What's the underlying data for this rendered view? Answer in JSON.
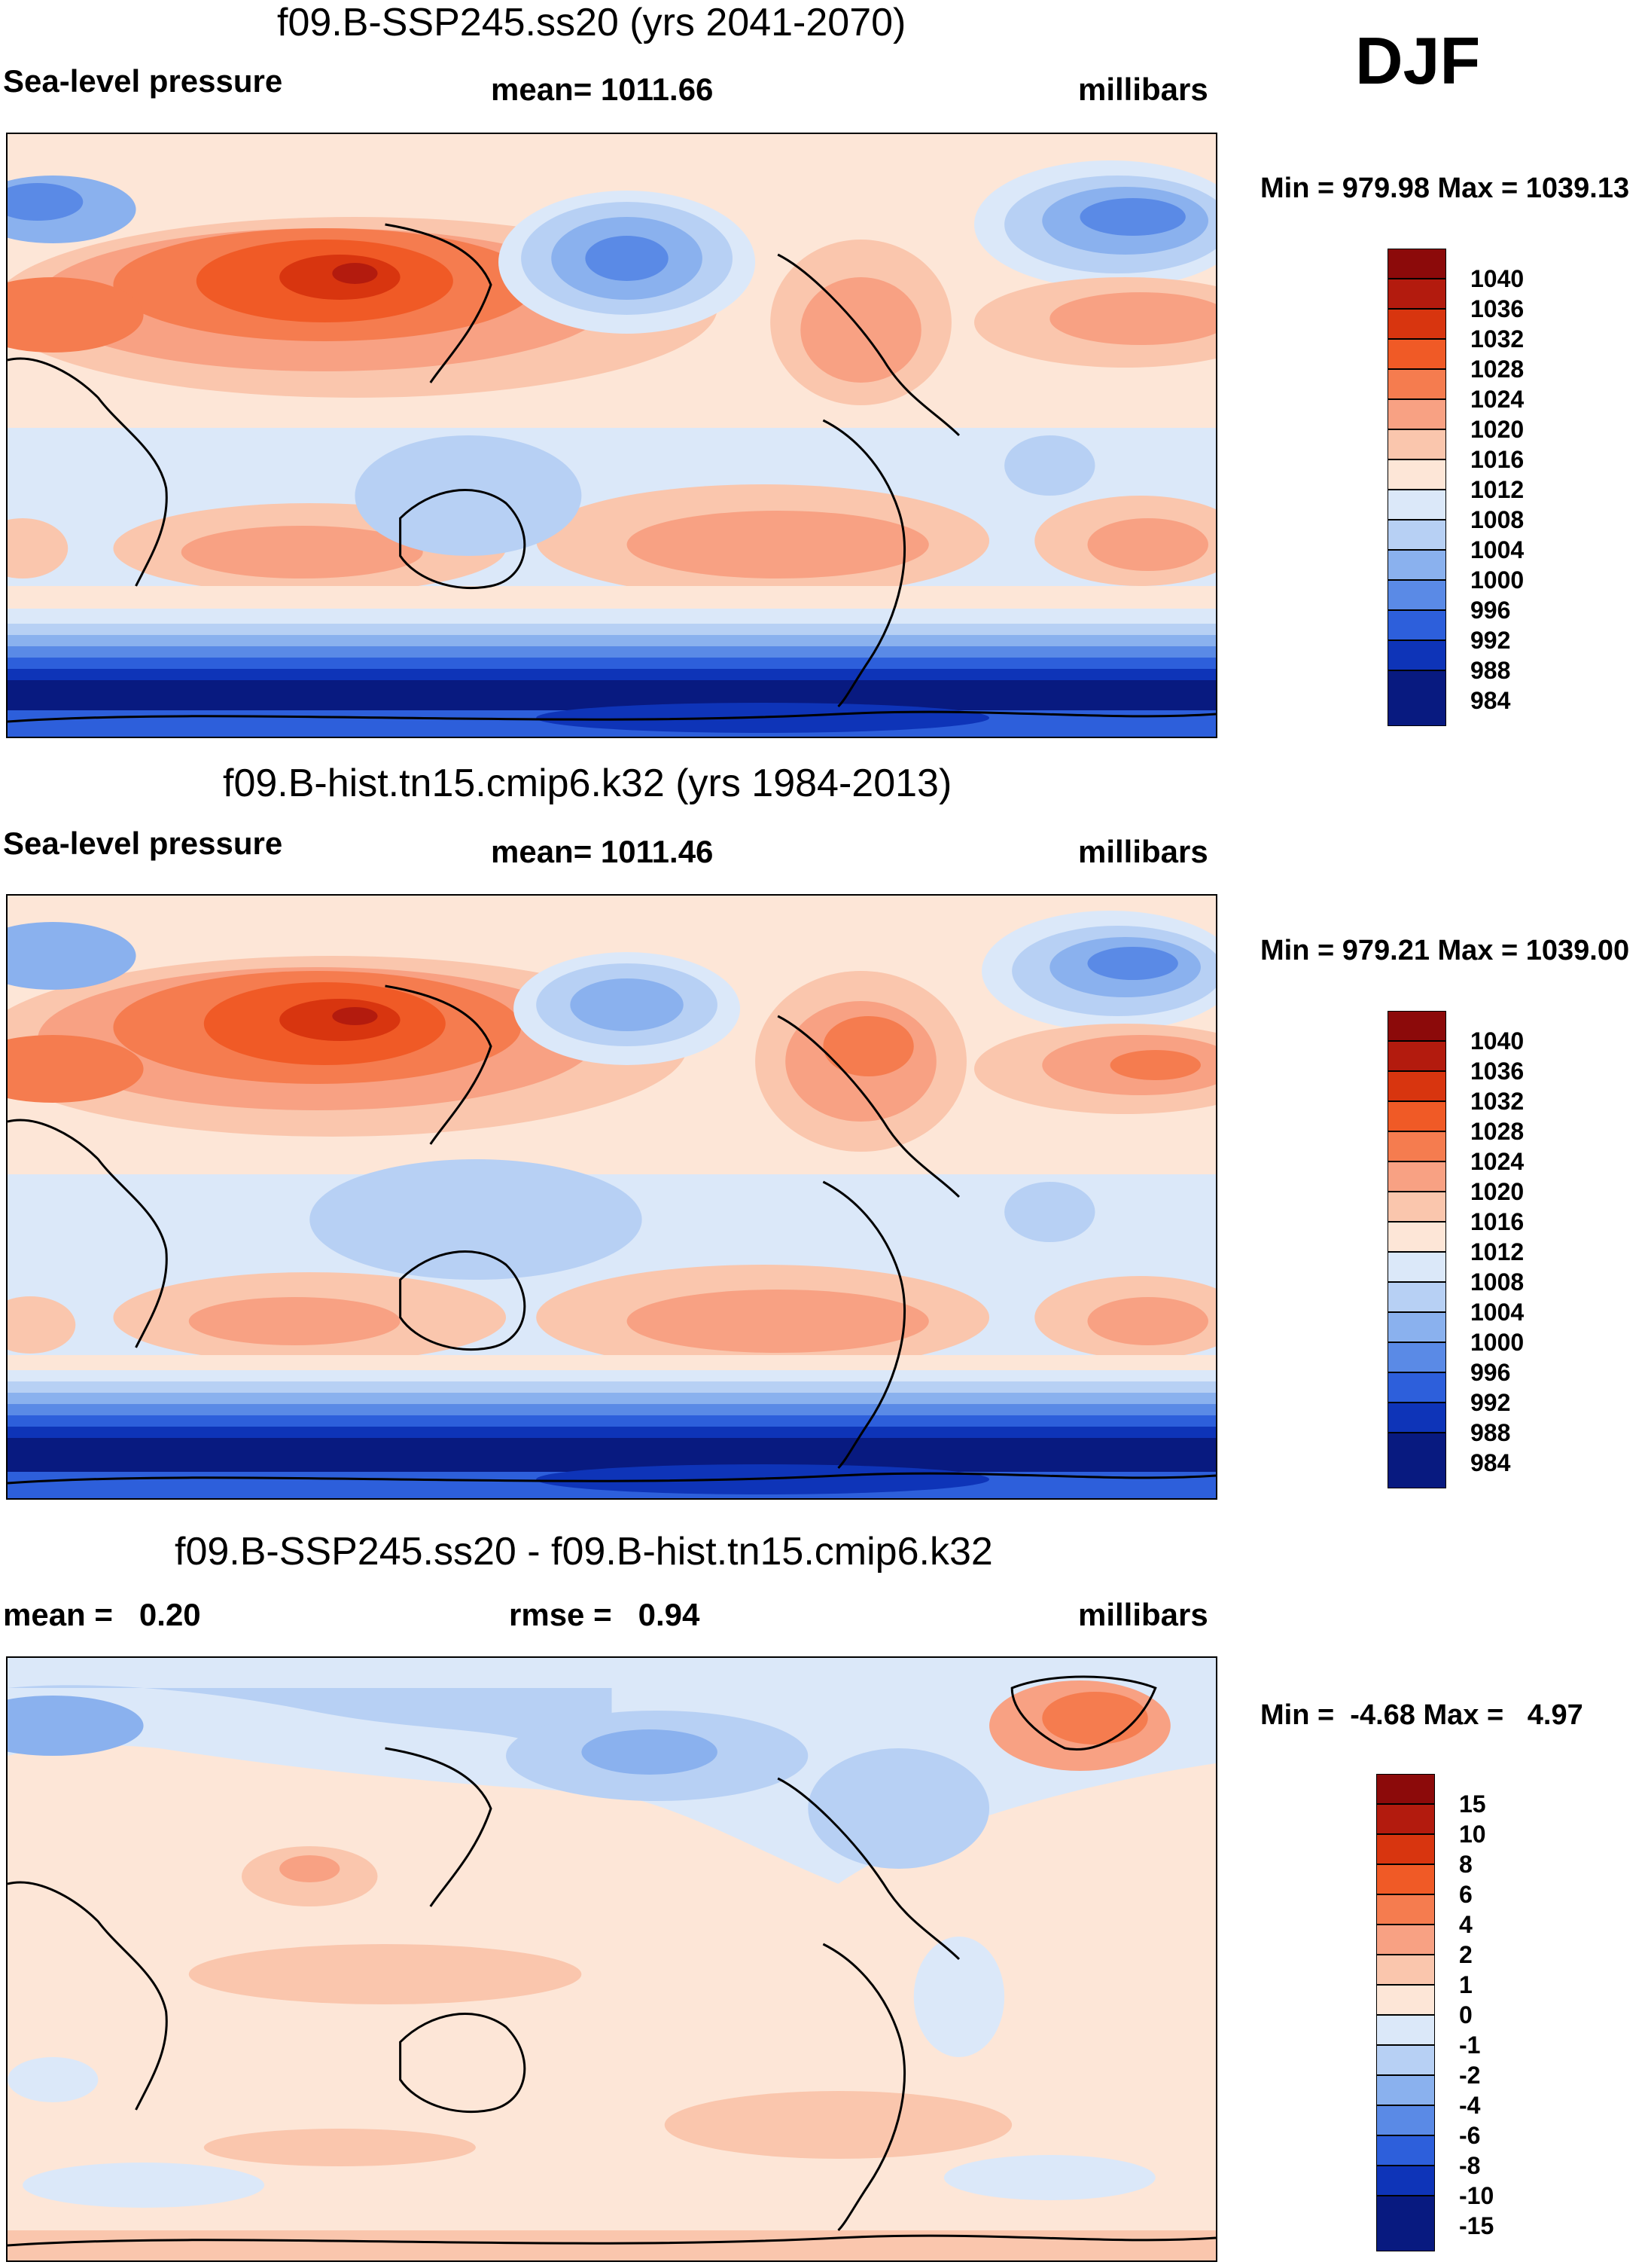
{
  "season": "DJF",
  "panels": [
    {
      "id": "ssp245",
      "title": "f09.B-SSP245.ss20 (yrs 2041-2070)",
      "left_label": "Sea-level pressure",
      "center_label": "mean= 1011.66",
      "units": "millibars",
      "minmax": "Min = 979.98 Max = 1039.13",
      "levels": [
        "1040",
        "1036",
        "1032",
        "1028",
        "1024",
        "1020",
        "1016",
        "1012",
        "1008",
        "1004",
        "1000",
        "996",
        "992",
        "988",
        "984"
      ],
      "colors": [
        "#8c0a0a",
        "#b31b0e",
        "#d8350f",
        "#f05a26",
        "#f57c4f",
        "#f8a183",
        "#fac6ad",
        "#fde6d7",
        "#dbe8f9",
        "#b7d0f4",
        "#8ab1ee",
        "#5a8ae6",
        "#2d5fdb",
        "#0e34b8",
        "#081a80"
      ]
    },
    {
      "id": "hist",
      "title": "f09.B-hist.tn15.cmip6.k32 (yrs 1984-2013)",
      "left_label": "Sea-level pressure",
      "center_label": "mean= 1011.46",
      "units": "millibars",
      "minmax": "Min = 979.21 Max = 1039.00",
      "levels": [
        "1040",
        "1036",
        "1032",
        "1028",
        "1024",
        "1020",
        "1016",
        "1012",
        "1008",
        "1004",
        "1000",
        "996",
        "992",
        "988",
        "984"
      ],
      "colors": [
        "#8c0a0a",
        "#b31b0e",
        "#d8350f",
        "#f05a26",
        "#f57c4f",
        "#f8a183",
        "#fac6ad",
        "#fde6d7",
        "#dbe8f9",
        "#b7d0f4",
        "#8ab1ee",
        "#5a8ae6",
        "#2d5fdb",
        "#0e34b8",
        "#081a80"
      ]
    },
    {
      "id": "diff",
      "title": "f09.B-SSP245.ss20 - f09.B-hist.tn15.cmip6.k32",
      "left_label": "mean =   0.20",
      "center_label": "rmse =   0.94",
      "units": "millibars",
      "minmax": "Min =  -4.68 Max =   4.97",
      "levels": [
        "15",
        "10",
        "8",
        "6",
        "4",
        "2",
        "1",
        "0",
        "-1",
        "-2",
        "-4",
        "-6",
        "-8",
        "-10",
        "-15"
      ],
      "colors": [
        "#8c0a0a",
        "#b31b0e",
        "#d8350f",
        "#f05a26",
        "#f57c4f",
        "#f8a183",
        "#fac6ad",
        "#fde6d7",
        "#dbe8f9",
        "#b7d0f4",
        "#8ab1ee",
        "#5a8ae6",
        "#2d5fdb",
        "#0e34b8",
        "#081a80"
      ]
    }
  ]
}
